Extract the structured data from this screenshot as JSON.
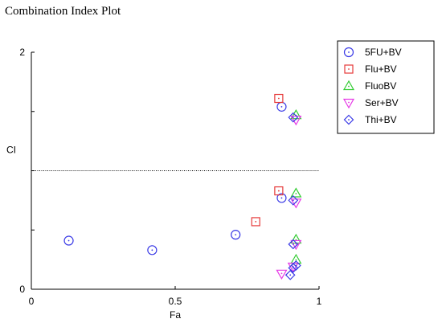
{
  "chart_data": {
    "type": "scatter",
    "title": "Combination Index Plot",
    "xlabel": "Fa",
    "ylabel": "CI",
    "xlim": [
      0,
      1
    ],
    "ylim": [
      0,
      2
    ],
    "xticks": [
      "0",
      "0.5",
      "1"
    ],
    "yticks": [
      "0",
      "2"
    ],
    "reference_line": {
      "y": 1,
      "style": "dotted"
    },
    "legend_position": "top-right",
    "series": [
      {
        "name": "5FU+BV",
        "marker": "circle",
        "color": "#3a3ae6",
        "points": [
          [
            0.13,
            0.41
          ],
          [
            0.42,
            0.33
          ],
          [
            0.71,
            0.46
          ],
          [
            0.87,
            0.77
          ],
          [
            0.87,
            1.54
          ]
        ]
      },
      {
        "name": "Flu+BV",
        "marker": "square",
        "color": "#e63a3a",
        "points": [
          [
            0.78,
            0.57
          ],
          [
            0.86,
            0.83
          ],
          [
            0.86,
            1.61
          ]
        ]
      },
      {
        "name": "FluoBV",
        "marker": "triangle-up",
        "color": "#33cc33",
        "points": [
          [
            0.92,
            0.25
          ],
          [
            0.92,
            0.42
          ],
          [
            0.92,
            0.81
          ],
          [
            0.92,
            1.47
          ]
        ]
      },
      {
        "name": "Ser+BV",
        "marker": "triangle-down",
        "color": "#e63ae6",
        "points": [
          [
            0.87,
            0.13
          ],
          [
            0.91,
            0.19
          ],
          [
            0.92,
            0.38
          ],
          [
            0.92,
            0.73
          ],
          [
            0.92,
            1.43
          ]
        ]
      },
      {
        "name": "Thi+BV",
        "marker": "diamond",
        "color": "#3a3ae6",
        "points": [
          [
            0.9,
            0.12
          ],
          [
            0.91,
            0.18
          ],
          [
            0.92,
            0.2
          ],
          [
            0.91,
            0.38
          ],
          [
            0.91,
            0.75
          ],
          [
            0.91,
            1.45
          ]
        ]
      }
    ]
  }
}
